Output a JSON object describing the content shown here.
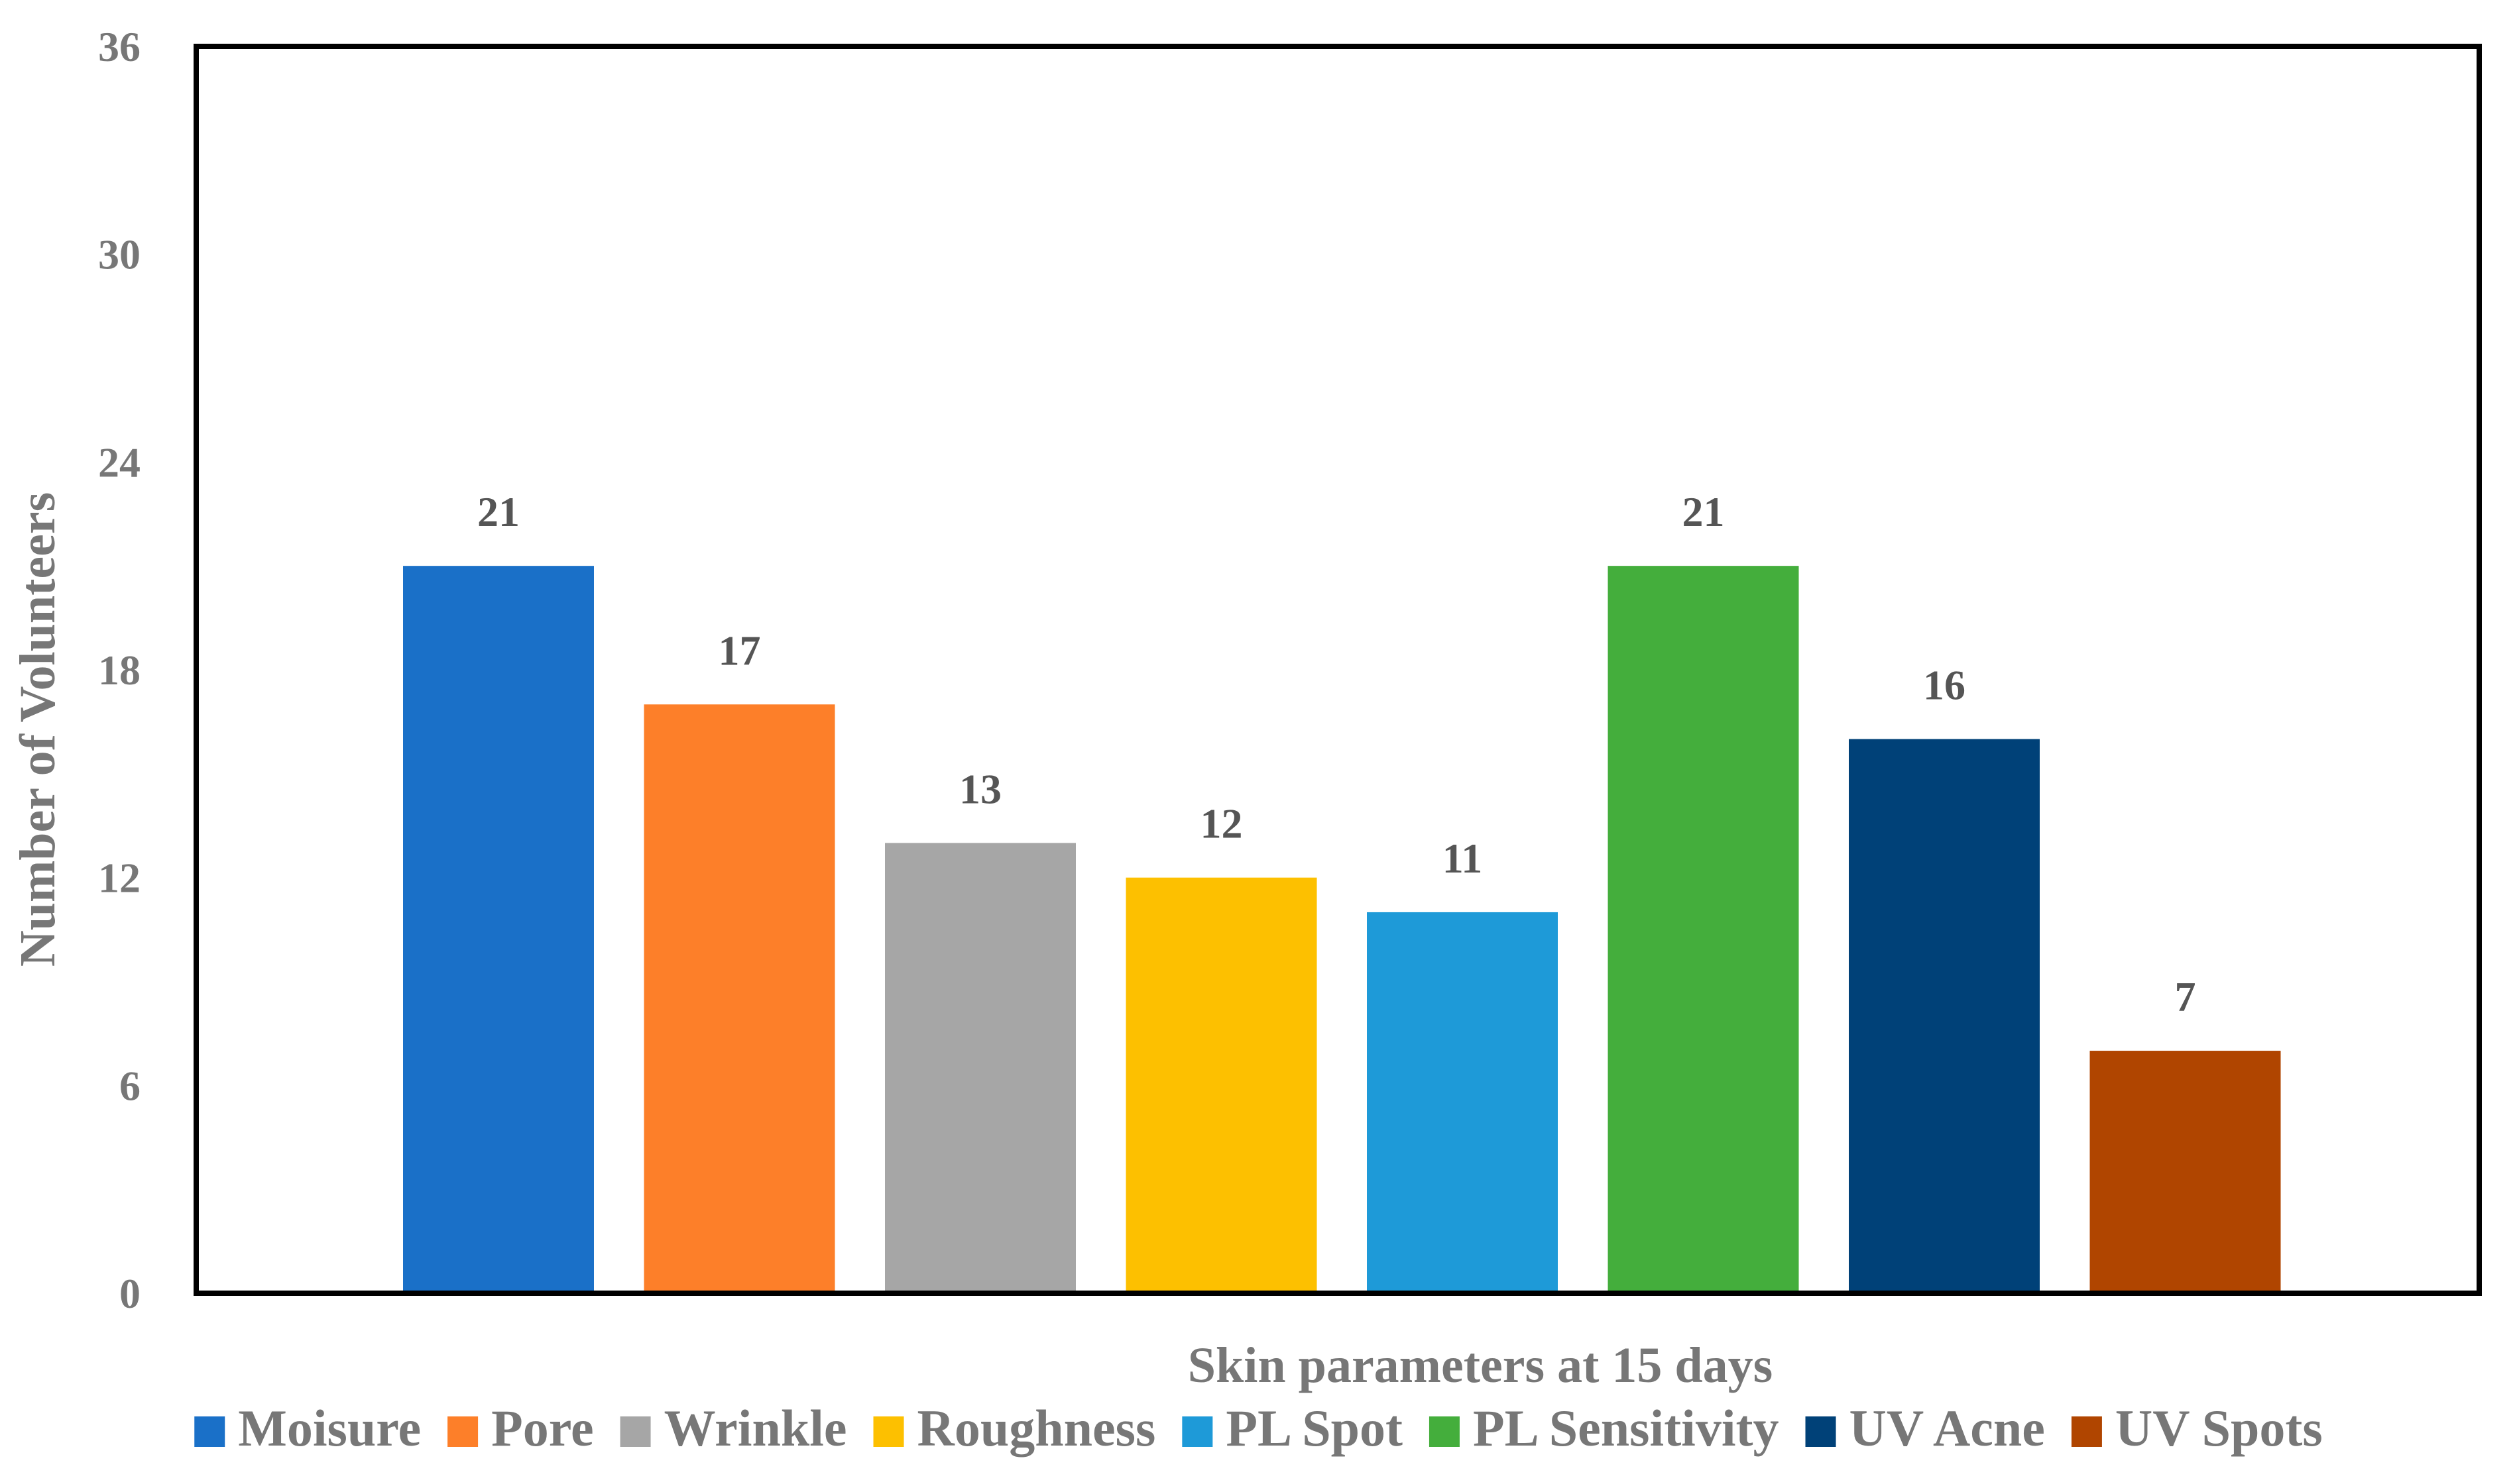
{
  "chart_data": {
    "type": "bar",
    "categories": [
      "Moisure",
      "Pore",
      "Wrinkle",
      "Roughness",
      "PL Spot",
      "PL Sensitivity",
      "UV Acne",
      "UV Spots"
    ],
    "values": [
      21,
      17,
      13,
      12,
      11,
      21,
      16,
      7
    ],
    "colors": [
      "#1a70c8",
      "#fd7f29",
      "#a6a6a6",
      "#fdc000",
      "#1e9ad8",
      "#44ae3c",
      "#004178",
      "#b04500"
    ],
    "xlabel": "Skin parameters at 15 days",
    "ylabel": "Number of Volunteers",
    "ylim": [
      0,
      36
    ],
    "yticks": [
      0,
      6,
      12,
      18,
      24,
      30,
      36
    ],
    "show_data_labels": true,
    "grid": false,
    "legend_position": "bottom"
  }
}
